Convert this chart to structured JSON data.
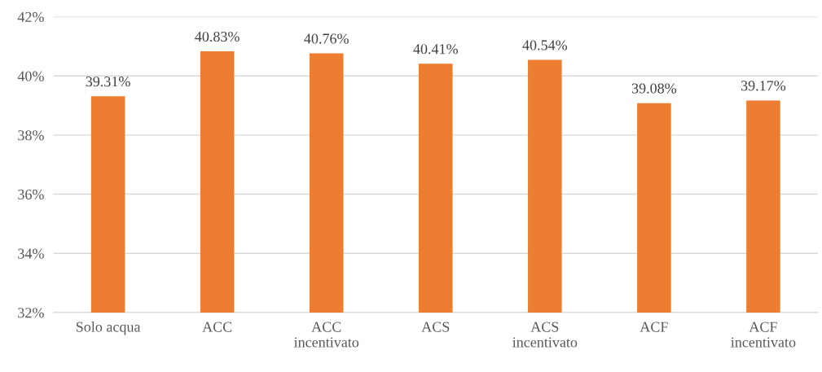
{
  "chart_data": {
    "type": "bar",
    "categories": [
      "Solo acqua",
      "ACC",
      "ACC\nincentivato",
      "ACS",
      "ACS\nincentivato",
      "ACF",
      "ACF\nincentivato"
    ],
    "values": [
      39.31,
      40.83,
      40.76,
      40.41,
      40.54,
      39.08,
      39.17
    ],
    "value_labels": [
      "39.31%",
      "40.83%",
      "40.76%",
      "40.41%",
      "40.54%",
      "39.08%",
      "39.17%"
    ],
    "color": "#ed7d31",
    "ylim": [
      32,
      42
    ],
    "yticks": [
      {
        "value": 32,
        "label": "32%"
      },
      {
        "value": 34,
        "label": "34%"
      },
      {
        "value": 36,
        "label": "36%"
      },
      {
        "value": 38,
        "label": "38%"
      },
      {
        "value": 40,
        "label": "40%"
      },
      {
        "value": 42,
        "label": "42%"
      }
    ],
    "grid": "y"
  }
}
